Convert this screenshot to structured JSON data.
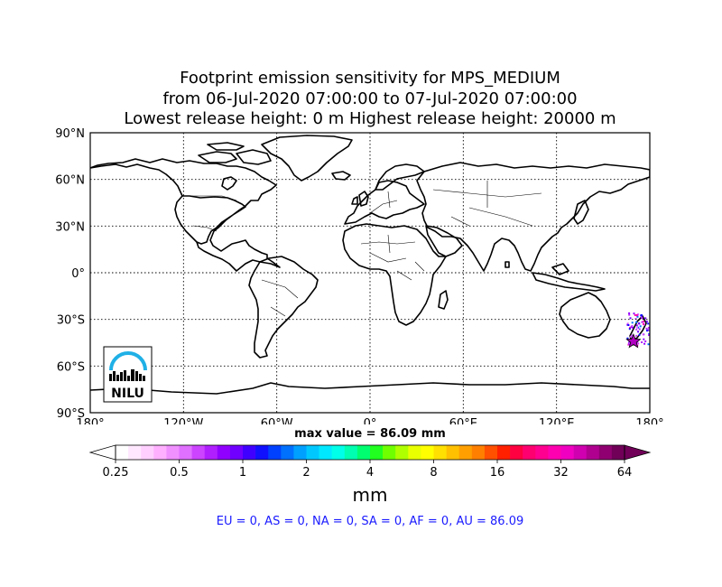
{
  "title": {
    "line1": "Footprint emission sensitivity for MPS_MEDIUM",
    "line2": "from 06-Jul-2020 07:00:00 to 07-Jul-2020 07:00:00",
    "line3": "Lowest release height: 0 m       Highest release height: 20000 m"
  },
  "map": {
    "lat_ticks": [
      "90°N",
      "60°N",
      "30°N",
      "0°",
      "30°S",
      "60°S",
      "90°S"
    ],
    "lon_ticks": [
      "180°",
      "120°W",
      "60°W",
      "0°",
      "60°E",
      "120°E",
      "180°"
    ],
    "lat_values": [
      90,
      60,
      30,
      0,
      -30,
      -60,
      -90
    ],
    "lon_values": [
      -180,
      -120,
      -60,
      0,
      60,
      120,
      180
    ],
    "release_marker": {
      "lon": 169.5,
      "lat": -44.2,
      "color": "#b000c0",
      "icon": "star-icon"
    },
    "logo_text": "NILU"
  },
  "max_value_text": "max value = 86.09 mm",
  "colorbar": {
    "tick_labels": [
      "0.25",
      "0.5",
      "1",
      "2",
      "4",
      "8",
      "16",
      "32",
      "64"
    ],
    "colors": [
      "#ffffff",
      "#ffe8ff",
      "#ffd0ff",
      "#ffb0ff",
      "#f090ff",
      "#e070ff",
      "#cc44ff",
      "#b020ff",
      "#9000ff",
      "#7000ff",
      "#4000ff",
      "#1010ff",
      "#0040ff",
      "#0070ff",
      "#00a0ff",
      "#00c8ff",
      "#00e8ff",
      "#00ffe8",
      "#00ffb0",
      "#00ff70",
      "#20ff20",
      "#70ff00",
      "#b0ff00",
      "#e8ff00",
      "#ffff00",
      "#ffe000",
      "#ffc000",
      "#ffa000",
      "#ff8000",
      "#ff5000",
      "#ff2000",
      "#ff0040",
      "#ff0070",
      "#ff0090",
      "#ff00b0",
      "#f000c0",
      "#d000b0",
      "#b00090",
      "#900070",
      "#700058"
    ],
    "unit": "mm"
  },
  "summary": "EU = 0,  AS = 0,  NA = 0,  SA = 0,  AF = 0,  AU = 86.09"
}
